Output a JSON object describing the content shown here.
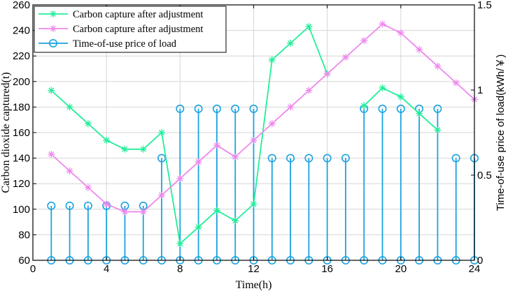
{
  "chart_data": {
    "type": "line",
    "x": [
      1,
      2,
      3,
      4,
      5,
      6,
      7,
      8,
      9,
      10,
      11,
      12,
      13,
      14,
      15,
      16,
      17,
      18,
      19,
      20,
      21,
      22,
      23,
      24
    ],
    "series": [
      {
        "name": "Carbon capture after adjustment",
        "axis": "left",
        "color": "#22ee99",
        "marker": "asterisk",
        "values": [
          193,
          180,
          167,
          154,
          147,
          147,
          160,
          73,
          86,
          99,
          91,
          104,
          217,
          230,
          243,
          206,
          null,
          181,
          195,
          188,
          175,
          162,
          null,
          null
        ]
      },
      {
        "name": "Carbon capture after adjustment",
        "axis": "left",
        "color": "#ee88ee",
        "marker": "asterisk",
        "values": [
          143,
          130,
          117,
          104,
          98,
          98,
          111,
          124,
          137,
          150,
          141,
          154,
          167,
          180,
          193,
          206,
          219,
          232,
          245,
          238,
          225,
          212,
          199,
          186
        ]
      },
      {
        "name": "Time-of-use price of load",
        "axis": "right",
        "type": "stem",
        "color": "#1aa3e0",
        "marker": "circle",
        "values": [
          0.32,
          0.32,
          0.32,
          0.32,
          0.32,
          0.32,
          0.6,
          0.89,
          0.89,
          0.89,
          0.89,
          0.89,
          0.6,
          0.6,
          0.6,
          0.6,
          0.6,
          0.89,
          0.89,
          0.89,
          0.89,
          0.89,
          0.6,
          0.6
        ]
      }
    ],
    "xlabel": "Time(h)",
    "ylabel": "Carbon dioxide captured(t)",
    "y2label": "Time-of-use price of load(kWh/￥)",
    "xlim": [
      0,
      24
    ],
    "ylim": [
      60,
      260
    ],
    "y2lim": [
      0,
      1.5
    ],
    "xticks": [
      "0",
      "4",
      "8",
      "12",
      "16",
      "20",
      "24"
    ],
    "yticks": [
      "60",
      "80",
      "100",
      "120",
      "140",
      "160",
      "180",
      "200",
      "220",
      "240",
      "260"
    ],
    "y2ticks": [
      "0",
      "0.5",
      "1",
      "1.5"
    ],
    "grid": true,
    "legend_position": "top-left"
  }
}
